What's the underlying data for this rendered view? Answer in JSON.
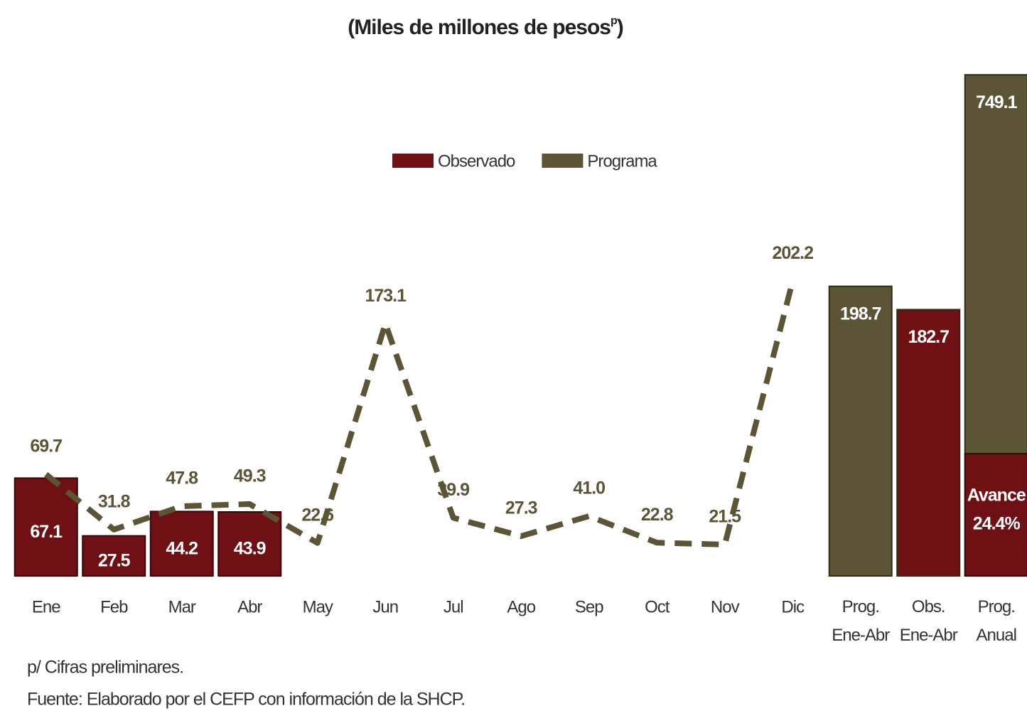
{
  "chart_data": {
    "type": "bar",
    "title": "(Miles de millones de pesos",
    "title_superscript": "p",
    "title_end": ")",
    "categories": [
      "Ene",
      "Feb",
      "Mar",
      "Abr",
      "May",
      "Jun",
      "Jul",
      "Ago",
      "Sep",
      "Oct",
      "Nov",
      "Dic"
    ],
    "series": [
      {
        "name": "Observado",
        "color": "#6e1014",
        "type": "bar",
        "values": [
          67.1,
          27.5,
          44.2,
          43.9,
          null,
          null,
          null,
          null,
          null,
          null,
          null,
          null
        ]
      },
      {
        "name": "Programa",
        "color": "#5b5535",
        "type": "line",
        "dashed": true,
        "values": [
          69.7,
          31.8,
          47.8,
          49.3,
          22.6,
          173.1,
          39.9,
          27.3,
          41.0,
          22.8,
          21.5,
          202.2
        ],
        "value_labels": [
          "69.7",
          "31.8",
          "47.8",
          "49.3",
          "22.6",
          "173.1",
          "39.9",
          "27.3",
          "41.0",
          "22.8",
          "21.5",
          "202.2"
        ]
      }
    ],
    "summary": {
      "categories": [
        "Prog. Ene-Abr",
        "Obs. Ene-Abr",
        "Prog. Anual"
      ],
      "values": [
        198.7,
        182.7,
        749.1
      ],
      "colors": [
        "#5b5535",
        "#6e1014",
        "#5b5535"
      ],
      "axes": [
        "y",
        "y",
        "y2"
      ],
      "avance": {
        "label": "Avance",
        "value": 24.4,
        "value_label": "24.4%",
        "color": "#6e1014"
      }
    },
    "ylim": [
      0,
      380
    ],
    "y2lim": [
      0,
      828
    ],
    "grid": false,
    "legend_position": "top",
    "notes": [
      "p/ Cifras preliminares.",
      "Fuente: Elaborado por el CEFP con información de la SHCP."
    ]
  }
}
